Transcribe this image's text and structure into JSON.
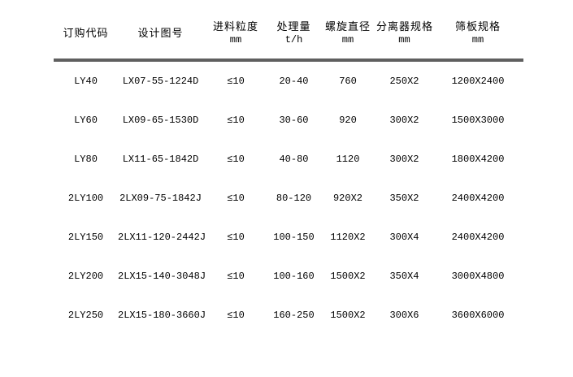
{
  "table": {
    "columns": [
      {
        "label": "订购代码",
        "unit": ""
      },
      {
        "label": "设计图号",
        "unit": ""
      },
      {
        "label": "进料粒度",
        "unit": "mm"
      },
      {
        "label": "处理量",
        "unit": "t/h"
      },
      {
        "label": "螺旋直径",
        "unit": "mm"
      },
      {
        "label": "分离器规格",
        "unit": "mm"
      },
      {
        "label": "筛板规格",
        "unit": "mm"
      }
    ],
    "rows": [
      [
        "LY40",
        "LX07-55-1224D",
        "≤10",
        "20-40",
        "760",
        "250X2",
        "1200X2400"
      ],
      [
        "LY60",
        "LX09-65-1530D",
        "≤10",
        "30-60",
        "920",
        "300X2",
        "1500X3000"
      ],
      [
        "LY80",
        "LX11-65-1842D",
        "≤10",
        "40-80",
        "1120",
        "300X2",
        "1800X4200"
      ],
      [
        "2LY100",
        "2LX09-75-1842J",
        "≤10",
        "80-120",
        "920X2",
        "350X2",
        "2400X4200"
      ],
      [
        "2LY150",
        "2LX11-120-2442J",
        "≤10",
        "100-150",
        "1120X2",
        "300X4",
        "2400X4200"
      ],
      [
        "2LY200",
        "2LX15-140-3048J",
        "≤10",
        "100-160",
        "1500X2",
        "350X4",
        "3000X4800"
      ],
      [
        "2LY250",
        "2LX15-180-3660J",
        "≤10",
        "160-250",
        "1500X2",
        "300X6",
        "3600X6000"
      ]
    ]
  },
  "colors": {
    "text": "#000000",
    "divider": "#5f5f5f",
    "background": "#ffffff"
  }
}
